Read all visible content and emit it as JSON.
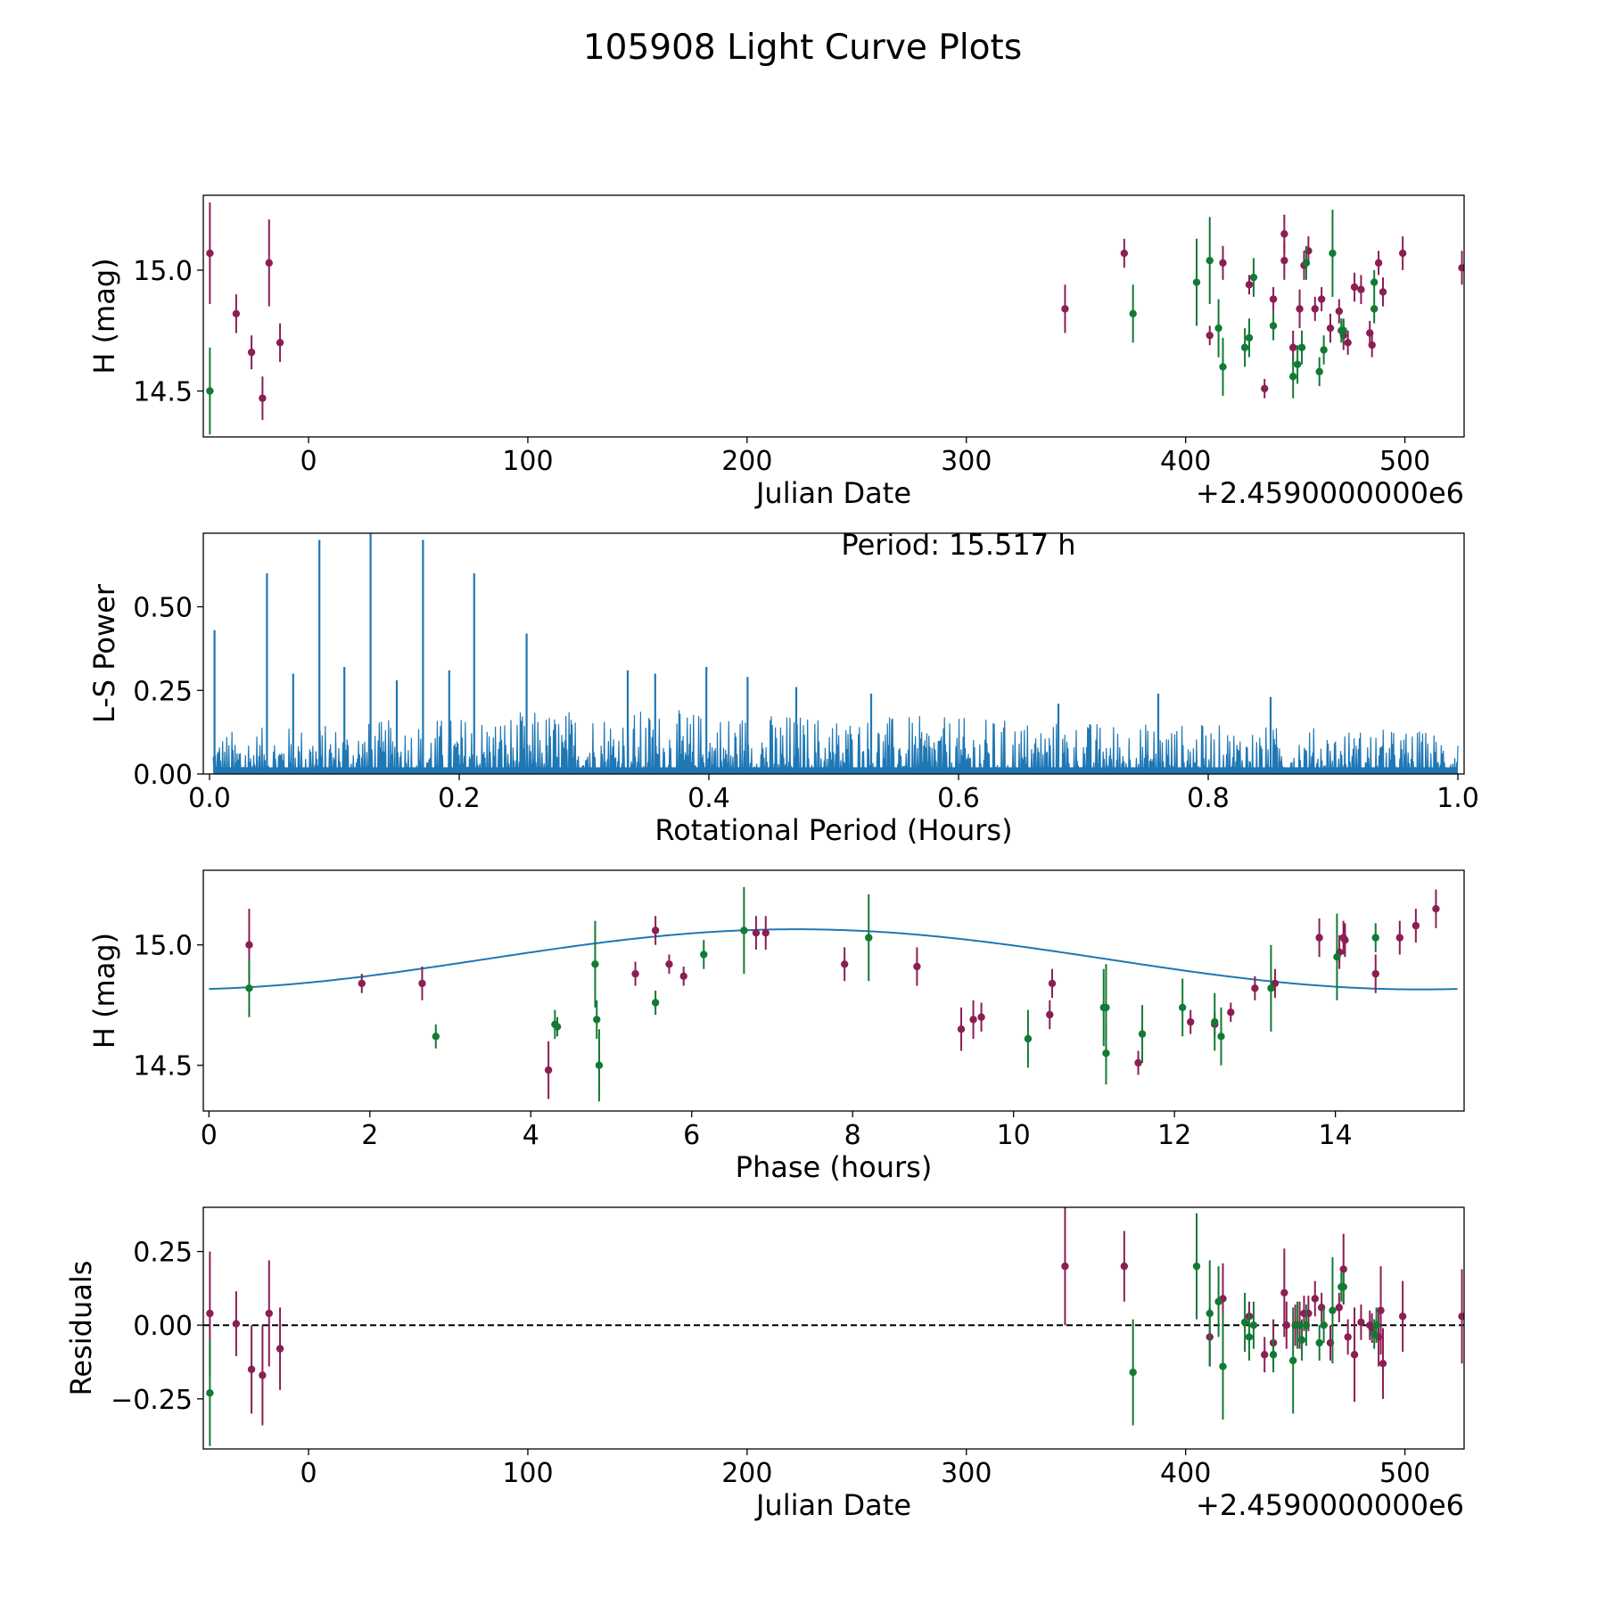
{
  "figure": {
    "title": "105908 Light Curve Plots",
    "colors": {
      "filter_r": "#8b1e54",
      "filter_g": "#137a34",
      "periodogram": "#1f77b4",
      "fit": "#1f77b4"
    }
  },
  "chart_data": [
    {
      "id": "lightcurve",
      "type": "scatter",
      "xlabel": "Julian Date",
      "ylabel": "H (mag)",
      "offset_text": "+2.4590000000e6",
      "xlim": [
        -48,
        527
      ],
      "ylim": [
        14.31,
        15.31
      ],
      "xticks": [
        0,
        100,
        200,
        300,
        400,
        500
      ],
      "xtick_labels": [
        "0",
        "100",
        "200",
        "300",
        "400",
        "500"
      ],
      "yticks": [
        14.5,
        15.0
      ],
      "ytick_labels": [
        "14.5",
        "15.0"
      ],
      "series": [
        {
          "name": "r",
          "color": "#8b1e54",
          "points": [
            [
              -45,
              15.07,
              0.21
            ],
            [
              -33,
              14.82,
              0.08
            ],
            [
              -26,
              14.66,
              0.07
            ],
            [
              -21,
              14.47,
              0.09
            ],
            [
              -18,
              15.03,
              0.18
            ],
            [
              -13,
              14.7,
              0.08
            ],
            [
              345,
              14.84,
              0.1
            ],
            [
              372,
              15.07,
              0.06
            ],
            [
              411,
              14.73,
              0.04
            ],
            [
              417,
              15.03,
              0.07
            ],
            [
              429,
              14.94,
              0.04
            ],
            [
              436,
              14.51,
              0.04
            ],
            [
              440,
              14.88,
              0.05
            ],
            [
              445,
              15.15,
              0.08
            ],
            [
              445,
              15.04,
              0.08
            ],
            [
              449,
              14.68,
              0.07
            ],
            [
              452,
              14.84,
              0.08
            ],
            [
              454,
              15.02,
              0.06
            ],
            [
              456,
              15.08,
              0.06
            ],
            [
              459,
              14.84,
              0.05
            ],
            [
              462,
              14.88,
              0.05
            ],
            [
              466,
              14.76,
              0.06
            ],
            [
              470,
              14.83,
              0.05
            ],
            [
              472,
              14.73,
              0.06
            ],
            [
              474,
              14.7,
              0.05
            ],
            [
              477,
              14.93,
              0.06
            ],
            [
              480,
              14.92,
              0.06
            ],
            [
              484,
              14.74,
              0.05
            ],
            [
              485,
              14.69,
              0.05
            ],
            [
              488,
              15.03,
              0.05
            ],
            [
              490,
              14.91,
              0.06
            ],
            [
              499,
              15.07,
              0.07
            ],
            [
              526,
              15.01,
              0.07
            ]
          ]
        },
        {
          "name": "g",
          "color": "#137a34",
          "points": [
            [
              -45,
              14.5,
              0.18
            ],
            [
              376,
              14.82,
              0.12
            ],
            [
              405,
              14.95,
              0.18
            ],
            [
              411,
              15.04,
              0.18
            ],
            [
              415,
              14.76,
              0.12
            ],
            [
              417,
              14.6,
              0.12
            ],
            [
              427,
              14.68,
              0.08
            ],
            [
              429,
              14.72,
              0.08
            ],
            [
              431,
              14.97,
              0.08
            ],
            [
              440,
              14.77,
              0.06
            ],
            [
              449,
              14.56,
              0.09
            ],
            [
              451,
              14.61,
              0.08
            ],
            [
              453,
              14.68,
              0.07
            ],
            [
              455,
              15.03,
              0.07
            ],
            [
              461,
              14.58,
              0.06
            ],
            [
              463,
              14.67,
              0.06
            ],
            [
              467,
              15.07,
              0.18
            ],
            [
              471,
              14.75,
              0.05
            ],
            [
              472,
              14.75,
              0.05
            ],
            [
              486,
              14.95,
              0.05
            ],
            [
              486,
              14.84,
              0.06
            ]
          ]
        }
      ]
    },
    {
      "id": "periodogram",
      "type": "line",
      "xlabel": "Rotational Period (Hours)",
      "ylabel": "L-S Power",
      "annotation": "Period: 15.517 h",
      "xlim": [
        -0.005,
        1.005
      ],
      "ylim": [
        0,
        0.72
      ],
      "xticks": [
        0.0,
        0.2,
        0.4,
        0.6,
        0.8,
        1.0
      ],
      "xtick_labels": [
        "0.0",
        "0.2",
        "0.4",
        "0.6",
        "0.8",
        "1.0"
      ],
      "yticks": [
        0.0,
        0.25,
        0.5
      ],
      "ytick_labels": [
        "0.00",
        "0.25",
        "0.50"
      ],
      "series": [
        {
          "name": "L-S power",
          "color": "#1f77b4",
          "noise_profile": {
            "x_range": [
              0.003,
              1.0
            ],
            "low_period_level": 0.13,
            "mid_period_level": 0.2,
            "high_period_level": 0.13
          },
          "peaks": [
            [
              0.004,
              0.43
            ],
            [
              0.046,
              0.6
            ],
            [
              0.088,
              0.7
            ],
            [
              0.129,
              0.72
            ],
            [
              0.171,
              0.7
            ],
            [
              0.212,
              0.6
            ],
            [
              0.254,
              0.42
            ],
            [
              0.067,
              0.3
            ],
            [
              0.108,
              0.32
            ],
            [
              0.15,
              0.28
            ],
            [
              0.192,
              0.31
            ],
            [
              0.335,
              0.31
            ],
            [
              0.357,
              0.3
            ],
            [
              0.398,
              0.32
            ],
            [
              0.431,
              0.29
            ],
            [
              0.47,
              0.26
            ],
            [
              0.53,
              0.24
            ],
            [
              0.68,
              0.21
            ],
            [
              0.76,
              0.24
            ],
            [
              0.85,
              0.23
            ]
          ]
        }
      ]
    },
    {
      "id": "phased",
      "type": "scatter",
      "xlabel": "Phase (hours)",
      "ylabel": "H (mag)",
      "xlim": [
        -0.07,
        15.6
      ],
      "ylim": [
        14.31,
        15.31
      ],
      "xticks": [
        0,
        2,
        4,
        6,
        8,
        10,
        12,
        14
      ],
      "xtick_labels": [
        "0",
        "2",
        "4",
        "6",
        "8",
        "10",
        "12",
        "14"
      ],
      "yticks": [
        14.5,
        15.0
      ],
      "ytick_labels": [
        "14.5",
        "15.0"
      ],
      "fit": {
        "color": "#1f77b4",
        "period": 15.517,
        "mean": 14.94,
        "amplitude": 0.125,
        "phase_of_max": 7.3
      },
      "series": [
        {
          "name": "r",
          "color": "#8b1e54",
          "points": [
            [
              0.5,
              15.0,
              0.15
            ],
            [
              1.9,
              14.84,
              0.04
            ],
            [
              2.65,
              14.84,
              0.07
            ],
            [
              4.22,
              14.48,
              0.12
            ],
            [
              5.3,
              14.88,
              0.05
            ],
            [
              5.55,
              15.06,
              0.06
            ],
            [
              5.72,
              14.92,
              0.04
            ],
            [
              5.9,
              14.87,
              0.04
            ],
            [
              6.8,
              15.05,
              0.07
            ],
            [
              6.92,
              15.05,
              0.07
            ],
            [
              7.9,
              14.92,
              0.07
            ],
            [
              8.8,
              14.91,
              0.08
            ],
            [
              9.35,
              14.65,
              0.09
            ],
            [
              9.5,
              14.69,
              0.08
            ],
            [
              9.6,
              14.7,
              0.06
            ],
            [
              10.45,
              14.71,
              0.06
            ],
            [
              10.48,
              14.84,
              0.06
            ],
            [
              11.55,
              14.51,
              0.05
            ],
            [
              12.2,
              14.68,
              0.05
            ],
            [
              12.5,
              14.67,
              0.05
            ],
            [
              12.7,
              14.72,
              0.04
            ],
            [
              13.0,
              14.82,
              0.05
            ],
            [
              13.25,
              14.84,
              0.06
            ],
            [
              13.8,
              15.03,
              0.08
            ],
            [
              14.05,
              14.97,
              0.07
            ],
            [
              14.1,
              15.03,
              0.07
            ],
            [
              14.12,
              15.02,
              0.07
            ],
            [
              14.5,
              14.88,
              0.08
            ],
            [
              14.8,
              15.03,
              0.07
            ],
            [
              15.0,
              15.08,
              0.07
            ],
            [
              15.25,
              15.15,
              0.08
            ]
          ]
        },
        {
          "name": "g",
          "color": "#137a34",
          "points": [
            [
              0.5,
              14.82,
              0.12
            ],
            [
              2.82,
              14.62,
              0.05
            ],
            [
              4.3,
              14.67,
              0.06
            ],
            [
              4.33,
              14.66,
              0.04
            ],
            [
              4.8,
              14.92,
              0.18
            ],
            [
              4.82,
              14.69,
              0.08
            ],
            [
              4.85,
              14.5,
              0.15
            ],
            [
              5.55,
              14.76,
              0.05
            ],
            [
              6.15,
              14.96,
              0.06
            ],
            [
              6.65,
              15.06,
              0.18
            ],
            [
              8.2,
              15.03,
              0.18
            ],
            [
              10.18,
              14.61,
              0.12
            ],
            [
              11.12,
              14.74,
              0.16
            ],
            [
              11.15,
              14.74,
              0.18
            ],
            [
              11.15,
              14.55,
              0.13
            ],
            [
              11.6,
              14.63,
              0.12
            ],
            [
              12.1,
              14.74,
              0.12
            ],
            [
              12.5,
              14.68,
              0.12
            ],
            [
              12.58,
              14.62,
              0.12
            ],
            [
              13.2,
              14.82,
              0.18
            ],
            [
              14.02,
              14.95,
              0.18
            ],
            [
              14.5,
              15.03,
              0.06
            ]
          ]
        }
      ]
    },
    {
      "id": "residuals",
      "type": "scatter",
      "xlabel": "Julian Date",
      "ylabel": "Residuals",
      "offset_text": "+2.4590000000e6",
      "xlim": [
        -48,
        527
      ],
      "ylim": [
        -0.42,
        0.4
      ],
      "xticks": [
        0,
        100,
        200,
        300,
        400,
        500
      ],
      "xtick_labels": [
        "0",
        "100",
        "200",
        "300",
        "400",
        "500"
      ],
      "yticks": [
        -0.25,
        0.0,
        0.25
      ],
      "ytick_labels": [
        "−0.25",
        "0.00",
        "0.25"
      ],
      "reference_line": 0.0,
      "series": [
        {
          "name": "r",
          "color": "#8b1e54",
          "points": [
            [
              -45,
              0.04,
              0.21
            ],
            [
              -33,
              0.005,
              0.11
            ],
            [
              -26,
              -0.15,
              0.15
            ],
            [
              -21,
              -0.17,
              0.17
            ],
            [
              -18,
              0.04,
              0.18
            ],
            [
              -13,
              -0.08,
              0.14
            ],
            [
              345,
              0.2,
              0.2
            ],
            [
              372,
              0.2,
              0.12
            ],
            [
              411,
              -0.04,
              0.1
            ],
            [
              417,
              0.09,
              0.12
            ],
            [
              429,
              0.03,
              0.05
            ],
            [
              436,
              -0.1,
              0.06
            ],
            [
              440,
              -0.06,
              0.08
            ],
            [
              445,
              0.11,
              0.15
            ],
            [
              446,
              0.0,
              0.08
            ],
            [
              450,
              -0.0,
              0.07
            ],
            [
              452,
              0.0,
              0.08
            ],
            [
              454,
              0.04,
              0.06
            ],
            [
              456,
              0.04,
              0.06
            ],
            [
              459,
              0.09,
              0.06
            ],
            [
              462,
              0.06,
              0.05
            ],
            [
              466,
              -0.06,
              0.06
            ],
            [
              470,
              0.06,
              0.05
            ],
            [
              472,
              0.19,
              0.12
            ],
            [
              474,
              -0.04,
              0.06
            ],
            [
              477,
              -0.1,
              0.16
            ],
            [
              480,
              0.01,
              0.06
            ],
            [
              484,
              0.0,
              0.05
            ],
            [
              485,
              -0.01,
              0.05
            ],
            [
              488,
              -0.04,
              0.1
            ],
            [
              489,
              0.05,
              0.15
            ],
            [
              490,
              -0.13,
              0.12
            ],
            [
              499,
              0.03,
              0.12
            ],
            [
              526,
              0.03,
              0.16
            ]
          ]
        },
        {
          "name": "g",
          "color": "#137a34",
          "points": [
            [
              -45,
              -0.23,
              0.18
            ],
            [
              376,
              -0.16,
              0.18
            ],
            [
              405,
              0.2,
              0.18
            ],
            [
              411,
              0.04,
              0.18
            ],
            [
              415,
              0.08,
              0.12
            ],
            [
              417,
              -0.14,
              0.18
            ],
            [
              427,
              0.01,
              0.1
            ],
            [
              429,
              -0.04,
              0.08
            ],
            [
              431,
              -0.0,
              0.08
            ],
            [
              440,
              -0.1,
              0.06
            ],
            [
              449,
              -0.12,
              0.18
            ],
            [
              451,
              -0.0,
              0.08
            ],
            [
              453,
              -0.05,
              0.07
            ],
            [
              455,
              0.0,
              0.07
            ],
            [
              461,
              -0.06,
              0.06
            ],
            [
              463,
              0.0,
              0.06
            ],
            [
              467,
              0.05,
              0.18
            ],
            [
              471,
              0.13,
              0.05
            ],
            [
              472,
              0.13,
              0.05
            ],
            [
              486,
              -0.03,
              0.05
            ],
            [
              487,
              -0.0,
              0.06
            ]
          ]
        }
      ]
    }
  ]
}
